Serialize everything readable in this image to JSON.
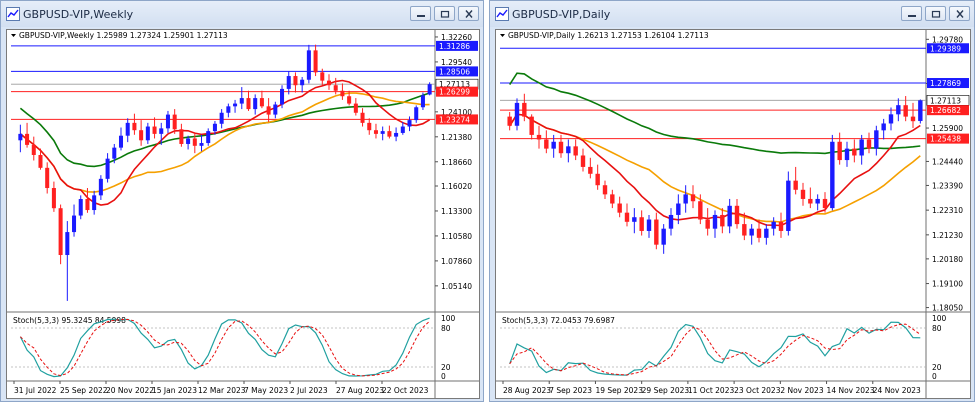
{
  "windows": {
    "weekly": {
      "title": "GBPUSD-VIP,Weekly",
      "header": "GBPUSD-VIP,Weekly  1.25989 1.27324 1.25901 1.27113",
      "price_ticks": [
        "1.32260",
        "1.29540",
        "1.24100",
        "1.21380",
        "1.18660",
        "1.16020",
        "1.13300",
        "1.10580",
        "1.07860",
        "1.05140",
        "1.02500"
      ],
      "line_labels": [
        {
          "text": "1.31286",
          "color": "#1a1aff"
        },
        {
          "text": "1.28506",
          "color": "#1a1aff"
        },
        {
          "text": "1.27113",
          "color": "#000000"
        },
        {
          "text": "1.26299",
          "color": "#ff2020"
        },
        {
          "text": "1.23274",
          "color": "#ff2020"
        }
      ],
      "stoch": {
        "label": "Stoch(5,3,3) 95.3245 84.5998",
        "levels": [
          "100",
          "80",
          "20",
          "0"
        ]
      },
      "time_labels": [
        "31 Jul 2022",
        "25 Sep 2022",
        "20 Nov 2022",
        "15 Jan 2023",
        "12 Mar 2023",
        "7 May 2023",
        "2 Jul 2023",
        "27 Aug 2023",
        "22 Oct 2023"
      ],
      "candles": [
        {
          "o": 1.21,
          "h": 1.227,
          "l": 1.197,
          "c": 1.217
        },
        {
          "o": 1.217,
          "h": 1.229,
          "l": 1.202,
          "c": 1.205
        },
        {
          "o": 1.205,
          "h": 1.214,
          "l": 1.188,
          "c": 1.194
        },
        {
          "o": 1.194,
          "h": 1.201,
          "l": 1.178,
          "c": 1.18
        },
        {
          "o": 1.18,
          "h": 1.186,
          "l": 1.152,
          "c": 1.158
        },
        {
          "o": 1.158,
          "h": 1.165,
          "l": 1.132,
          "c": 1.136
        },
        {
          "o": 1.136,
          "h": 1.14,
          "l": 1.075,
          "c": 1.085
        },
        {
          "o": 1.085,
          "h": 1.122,
          "l": 1.035,
          "c": 1.11
        },
        {
          "o": 1.11,
          "h": 1.14,
          "l": 1.105,
          "c": 1.128
        },
        {
          "o": 1.128,
          "h": 1.15,
          "l": 1.124,
          "c": 1.146
        },
        {
          "o": 1.146,
          "h": 1.158,
          "l": 1.131,
          "c": 1.134
        },
        {
          "o": 1.134,
          "h": 1.155,
          "l": 1.129,
          "c": 1.15
        },
        {
          "o": 1.15,
          "h": 1.172,
          "l": 1.145,
          "c": 1.168
        },
        {
          "o": 1.168,
          "h": 1.196,
          "l": 1.164,
          "c": 1.19
        },
        {
          "o": 1.19,
          "h": 1.206,
          "l": 1.185,
          "c": 1.202
        },
        {
          "o": 1.202,
          "h": 1.224,
          "l": 1.199,
          "c": 1.215
        },
        {
          "o": 1.215,
          "h": 1.234,
          "l": 1.208,
          "c": 1.229
        },
        {
          "o": 1.229,
          "h": 1.239,
          "l": 1.216,
          "c": 1.221
        },
        {
          "o": 1.221,
          "h": 1.232,
          "l": 1.204,
          "c": 1.21
        },
        {
          "o": 1.21,
          "h": 1.229,
          "l": 1.206,
          "c": 1.225
        },
        {
          "o": 1.225,
          "h": 1.235,
          "l": 1.212,
          "c": 1.217
        },
        {
          "o": 1.217,
          "h": 1.229,
          "l": 1.205,
          "c": 1.223
        },
        {
          "o": 1.223,
          "h": 1.242,
          "l": 1.218,
          "c": 1.238
        },
        {
          "o": 1.238,
          "h": 1.244,
          "l": 1.217,
          "c": 1.222
        },
        {
          "o": 1.222,
          "h": 1.228,
          "l": 1.203,
          "c": 1.206
        },
        {
          "o": 1.206,
          "h": 1.215,
          "l": 1.2,
          "c": 1.212
        },
        {
          "o": 1.212,
          "h": 1.218,
          "l": 1.196,
          "c": 1.204
        },
        {
          "o": 1.204,
          "h": 1.216,
          "l": 1.198,
          "c": 1.207
        },
        {
          "o": 1.207,
          "h": 1.223,
          "l": 1.204,
          "c": 1.22
        },
        {
          "o": 1.22,
          "h": 1.231,
          "l": 1.216,
          "c": 1.228
        },
        {
          "o": 1.228,
          "h": 1.244,
          "l": 1.223,
          "c": 1.24
        },
        {
          "o": 1.24,
          "h": 1.25,
          "l": 1.235,
          "c": 1.247
        },
        {
          "o": 1.247,
          "h": 1.254,
          "l": 1.24,
          "c": 1.25
        },
        {
          "o": 1.25,
          "h": 1.268,
          "l": 1.244,
          "c": 1.256
        },
        {
          "o": 1.256,
          "h": 1.264,
          "l": 1.242,
          "c": 1.244
        },
        {
          "o": 1.244,
          "h": 1.26,
          "l": 1.238,
          "c": 1.256
        },
        {
          "o": 1.256,
          "h": 1.264,
          "l": 1.245,
          "c": 1.247
        },
        {
          "o": 1.247,
          "h": 1.256,
          "l": 1.23,
          "c": 1.238
        },
        {
          "o": 1.238,
          "h": 1.252,
          "l": 1.234,
          "c": 1.249
        },
        {
          "o": 1.249,
          "h": 1.27,
          "l": 1.245,
          "c": 1.266
        },
        {
          "o": 1.266,
          "h": 1.285,
          "l": 1.26,
          "c": 1.28
        },
        {
          "o": 1.28,
          "h": 1.284,
          "l": 1.262,
          "c": 1.27
        },
        {
          "o": 1.27,
          "h": 1.279,
          "l": 1.262,
          "c": 1.276
        },
        {
          "o": 1.276,
          "h": 1.314,
          "l": 1.272,
          "c": 1.308
        },
        {
          "o": 1.308,
          "h": 1.3142,
          "l": 1.28,
          "c": 1.284
        },
        {
          "o": 1.284,
          "h": 1.288,
          "l": 1.27,
          "c": 1.275
        },
        {
          "o": 1.275,
          "h": 1.282,
          "l": 1.265,
          "c": 1.27
        },
        {
          "o": 1.27,
          "h": 1.278,
          "l": 1.26,
          "c": 1.264
        },
        {
          "o": 1.264,
          "h": 1.272,
          "l": 1.254,
          "c": 1.258
        },
        {
          "o": 1.258,
          "h": 1.264,
          "l": 1.248,
          "c": 1.25
        },
        {
          "o": 1.25,
          "h": 1.256,
          "l": 1.237,
          "c": 1.24
        },
        {
          "o": 1.24,
          "h": 1.245,
          "l": 1.225,
          "c": 1.229
        },
        {
          "o": 1.229,
          "h": 1.234,
          "l": 1.216,
          "c": 1.221
        },
        {
          "o": 1.221,
          "h": 1.228,
          "l": 1.212,
          "c": 1.217
        },
        {
          "o": 1.217,
          "h": 1.225,
          "l": 1.21,
          "c": 1.22
        },
        {
          "o": 1.22,
          "h": 1.226,
          "l": 1.212,
          "c": 1.214
        },
        {
          "o": 1.214,
          "h": 1.224,
          "l": 1.209,
          "c": 1.218
        },
        {
          "o": 1.218,
          "h": 1.23,
          "l": 1.216,
          "c": 1.225
        },
        {
          "o": 1.225,
          "h": 1.236,
          "l": 1.22,
          "c": 1.232
        },
        {
          "o": 1.232,
          "h": 1.248,
          "l": 1.229,
          "c": 1.246
        },
        {
          "o": 1.246,
          "h": 1.262,
          "l": 1.243,
          "c": 1.259
        },
        {
          "o": 1.2599,
          "h": 1.2732,
          "l": 1.259,
          "c": 1.2711
        }
      ]
    },
    "daily": {
      "title": "GBPUSD-VIP,Daily",
      "header": "GBPUSD-VIP,Daily  1.26213 1.27153 1.26104 1.27113",
      "price_ticks": [
        "1.29780",
        "1.27850",
        "1.25900",
        "1.24440",
        "1.23390",
        "1.22310",
        "1.21230",
        "1.20180",
        "1.19100",
        "1.18050"
      ],
      "line_labels": [
        {
          "text": "1.29389",
          "color": "#1a1aff"
        },
        {
          "text": "1.27869",
          "color": "#1a1aff"
        },
        {
          "text": "1.27113",
          "color": "#000000"
        },
        {
          "text": "1.26682",
          "color": "#ff2020"
        },
        {
          "text": "1.25438",
          "color": "#ff2020"
        }
      ],
      "stoch": {
        "label": "Stoch(5,3,3) 72.0453 79.6987",
        "levels": [
          "100",
          "80",
          "20",
          "0"
        ]
      },
      "time_labels": [
        "28 Aug 2023",
        "7 Sep 2023",
        "19 Sep 2023",
        "29 Sep 2023",
        "11 Oct 2023",
        "23 Oct 2023",
        "2 Nov 2023",
        "14 Nov 2023",
        "24 Nov 2023"
      ],
      "candles": [
        {
          "o": 1.264,
          "h": 1.266,
          "l": 1.258,
          "c": 1.26
        },
        {
          "o": 1.26,
          "h": 1.272,
          "l": 1.258,
          "c": 1.27
        },
        {
          "o": 1.27,
          "h": 1.274,
          "l": 1.262,
          "c": 1.264
        },
        {
          "o": 1.264,
          "h": 1.265,
          "l": 1.254,
          "c": 1.256
        },
        {
          "o": 1.256,
          "h": 1.26,
          "l": 1.25,
          "c": 1.254
        },
        {
          "o": 1.254,
          "h": 1.258,
          "l": 1.248,
          "c": 1.25
        },
        {
          "o": 1.25,
          "h": 1.256,
          "l": 1.246,
          "c": 1.253
        },
        {
          "o": 1.253,
          "h": 1.256,
          "l": 1.246,
          "c": 1.248
        },
        {
          "o": 1.248,
          "h": 1.254,
          "l": 1.244,
          "c": 1.251
        },
        {
          "o": 1.251,
          "h": 1.254,
          "l": 1.245,
          "c": 1.247
        },
        {
          "o": 1.247,
          "h": 1.25,
          "l": 1.24,
          "c": 1.242
        },
        {
          "o": 1.242,
          "h": 1.246,
          "l": 1.237,
          "c": 1.239
        },
        {
          "o": 1.239,
          "h": 1.243,
          "l": 1.232,
          "c": 1.234
        },
        {
          "o": 1.234,
          "h": 1.236,
          "l": 1.228,
          "c": 1.23
        },
        {
          "o": 1.23,
          "h": 1.232,
          "l": 1.224,
          "c": 1.226
        },
        {
          "o": 1.226,
          "h": 1.229,
          "l": 1.22,
          "c": 1.222
        },
        {
          "o": 1.222,
          "h": 1.226,
          "l": 1.216,
          "c": 1.218
        },
        {
          "o": 1.218,
          "h": 1.224,
          "l": 1.213,
          "c": 1.22
        },
        {
          "o": 1.22,
          "h": 1.223,
          "l": 1.212,
          "c": 1.214
        },
        {
          "o": 1.214,
          "h": 1.221,
          "l": 1.211,
          "c": 1.219
        },
        {
          "o": 1.219,
          "h": 1.222,
          "l": 1.206,
          "c": 1.208
        },
        {
          "o": 1.208,
          "h": 1.217,
          "l": 1.204,
          "c": 1.215
        },
        {
          "o": 1.215,
          "h": 1.224,
          "l": 1.212,
          "c": 1.221
        },
        {
          "o": 1.221,
          "h": 1.23,
          "l": 1.217,
          "c": 1.226
        },
        {
          "o": 1.226,
          "h": 1.234,
          "l": 1.222,
          "c": 1.23
        },
        {
          "o": 1.23,
          "h": 1.234,
          "l": 1.224,
          "c": 1.227
        },
        {
          "o": 1.227,
          "h": 1.23,
          "l": 1.217,
          "c": 1.219
        },
        {
          "o": 1.219,
          "h": 1.224,
          "l": 1.212,
          "c": 1.215
        },
        {
          "o": 1.215,
          "h": 1.223,
          "l": 1.211,
          "c": 1.221
        },
        {
          "o": 1.221,
          "h": 1.224,
          "l": 1.213,
          "c": 1.216
        },
        {
          "o": 1.216,
          "h": 1.228,
          "l": 1.213,
          "c": 1.225
        },
        {
          "o": 1.225,
          "h": 1.228,
          "l": 1.215,
          "c": 1.217
        },
        {
          "o": 1.217,
          "h": 1.222,
          "l": 1.21,
          "c": 1.212
        },
        {
          "o": 1.212,
          "h": 1.217,
          "l": 1.208,
          "c": 1.215
        },
        {
          "o": 1.215,
          "h": 1.219,
          "l": 1.209,
          "c": 1.211
        },
        {
          "o": 1.211,
          "h": 1.217,
          "l": 1.208,
          "c": 1.215
        },
        {
          "o": 1.215,
          "h": 1.22,
          "l": 1.212,
          "c": 1.218
        },
        {
          "o": 1.218,
          "h": 1.222,
          "l": 1.211,
          "c": 1.214
        },
        {
          "o": 1.214,
          "h": 1.24,
          "l": 1.212,
          "c": 1.236
        },
        {
          "o": 1.236,
          "h": 1.242,
          "l": 1.23,
          "c": 1.232
        },
        {
          "o": 1.232,
          "h": 1.235,
          "l": 1.225,
          "c": 1.228
        },
        {
          "o": 1.228,
          "h": 1.233,
          "l": 1.224,
          "c": 1.226
        },
        {
          "o": 1.226,
          "h": 1.23,
          "l": 1.223,
          "c": 1.228
        },
        {
          "o": 1.228,
          "h": 1.231,
          "l": 1.222,
          "c": 1.224
        },
        {
          "o": 1.224,
          "h": 1.256,
          "l": 1.223,
          "c": 1.253
        },
        {
          "o": 1.253,
          "h": 1.257,
          "l": 1.243,
          "c": 1.245
        },
        {
          "o": 1.245,
          "h": 1.253,
          "l": 1.242,
          "c": 1.25
        },
        {
          "o": 1.25,
          "h": 1.254,
          "l": 1.244,
          "c": 1.247
        },
        {
          "o": 1.247,
          "h": 1.256,
          "l": 1.243,
          "c": 1.254
        },
        {
          "o": 1.254,
          "h": 1.257,
          "l": 1.248,
          "c": 1.25
        },
        {
          "o": 1.25,
          "h": 1.26,
          "l": 1.247,
          "c": 1.258
        },
        {
          "o": 1.258,
          "h": 1.263,
          "l": 1.254,
          "c": 1.261
        },
        {
          "o": 1.261,
          "h": 1.268,
          "l": 1.258,
          "c": 1.265
        },
        {
          "o": 1.265,
          "h": 1.272,
          "l": 1.262,
          "c": 1.269
        },
        {
          "o": 1.269,
          "h": 1.273,
          "l": 1.262,
          "c": 1.264
        },
        {
          "o": 1.264,
          "h": 1.27,
          "l": 1.259,
          "c": 1.262
        },
        {
          "o": 1.2621,
          "h": 1.2715,
          "l": 1.261,
          "c": 1.2711
        }
      ]
    }
  },
  "colors": {
    "bull": "#1a1aff",
    "bear": "#ff2020",
    "ma_fast": "#e81010",
    "ma_mid": "#f5a000",
    "ma_slow": "#0a7a0a",
    "stoch_main": "#20a0a0",
    "stoch_signal": "#e81010",
    "level_blue": "#1a1aff",
    "level_red": "#ff2020",
    "grid": "#c8c8c8"
  },
  "icons": {
    "title": "chart-window-icon",
    "minimize": "minimize-icon",
    "restore": "restore-icon",
    "close": "close-icon"
  }
}
